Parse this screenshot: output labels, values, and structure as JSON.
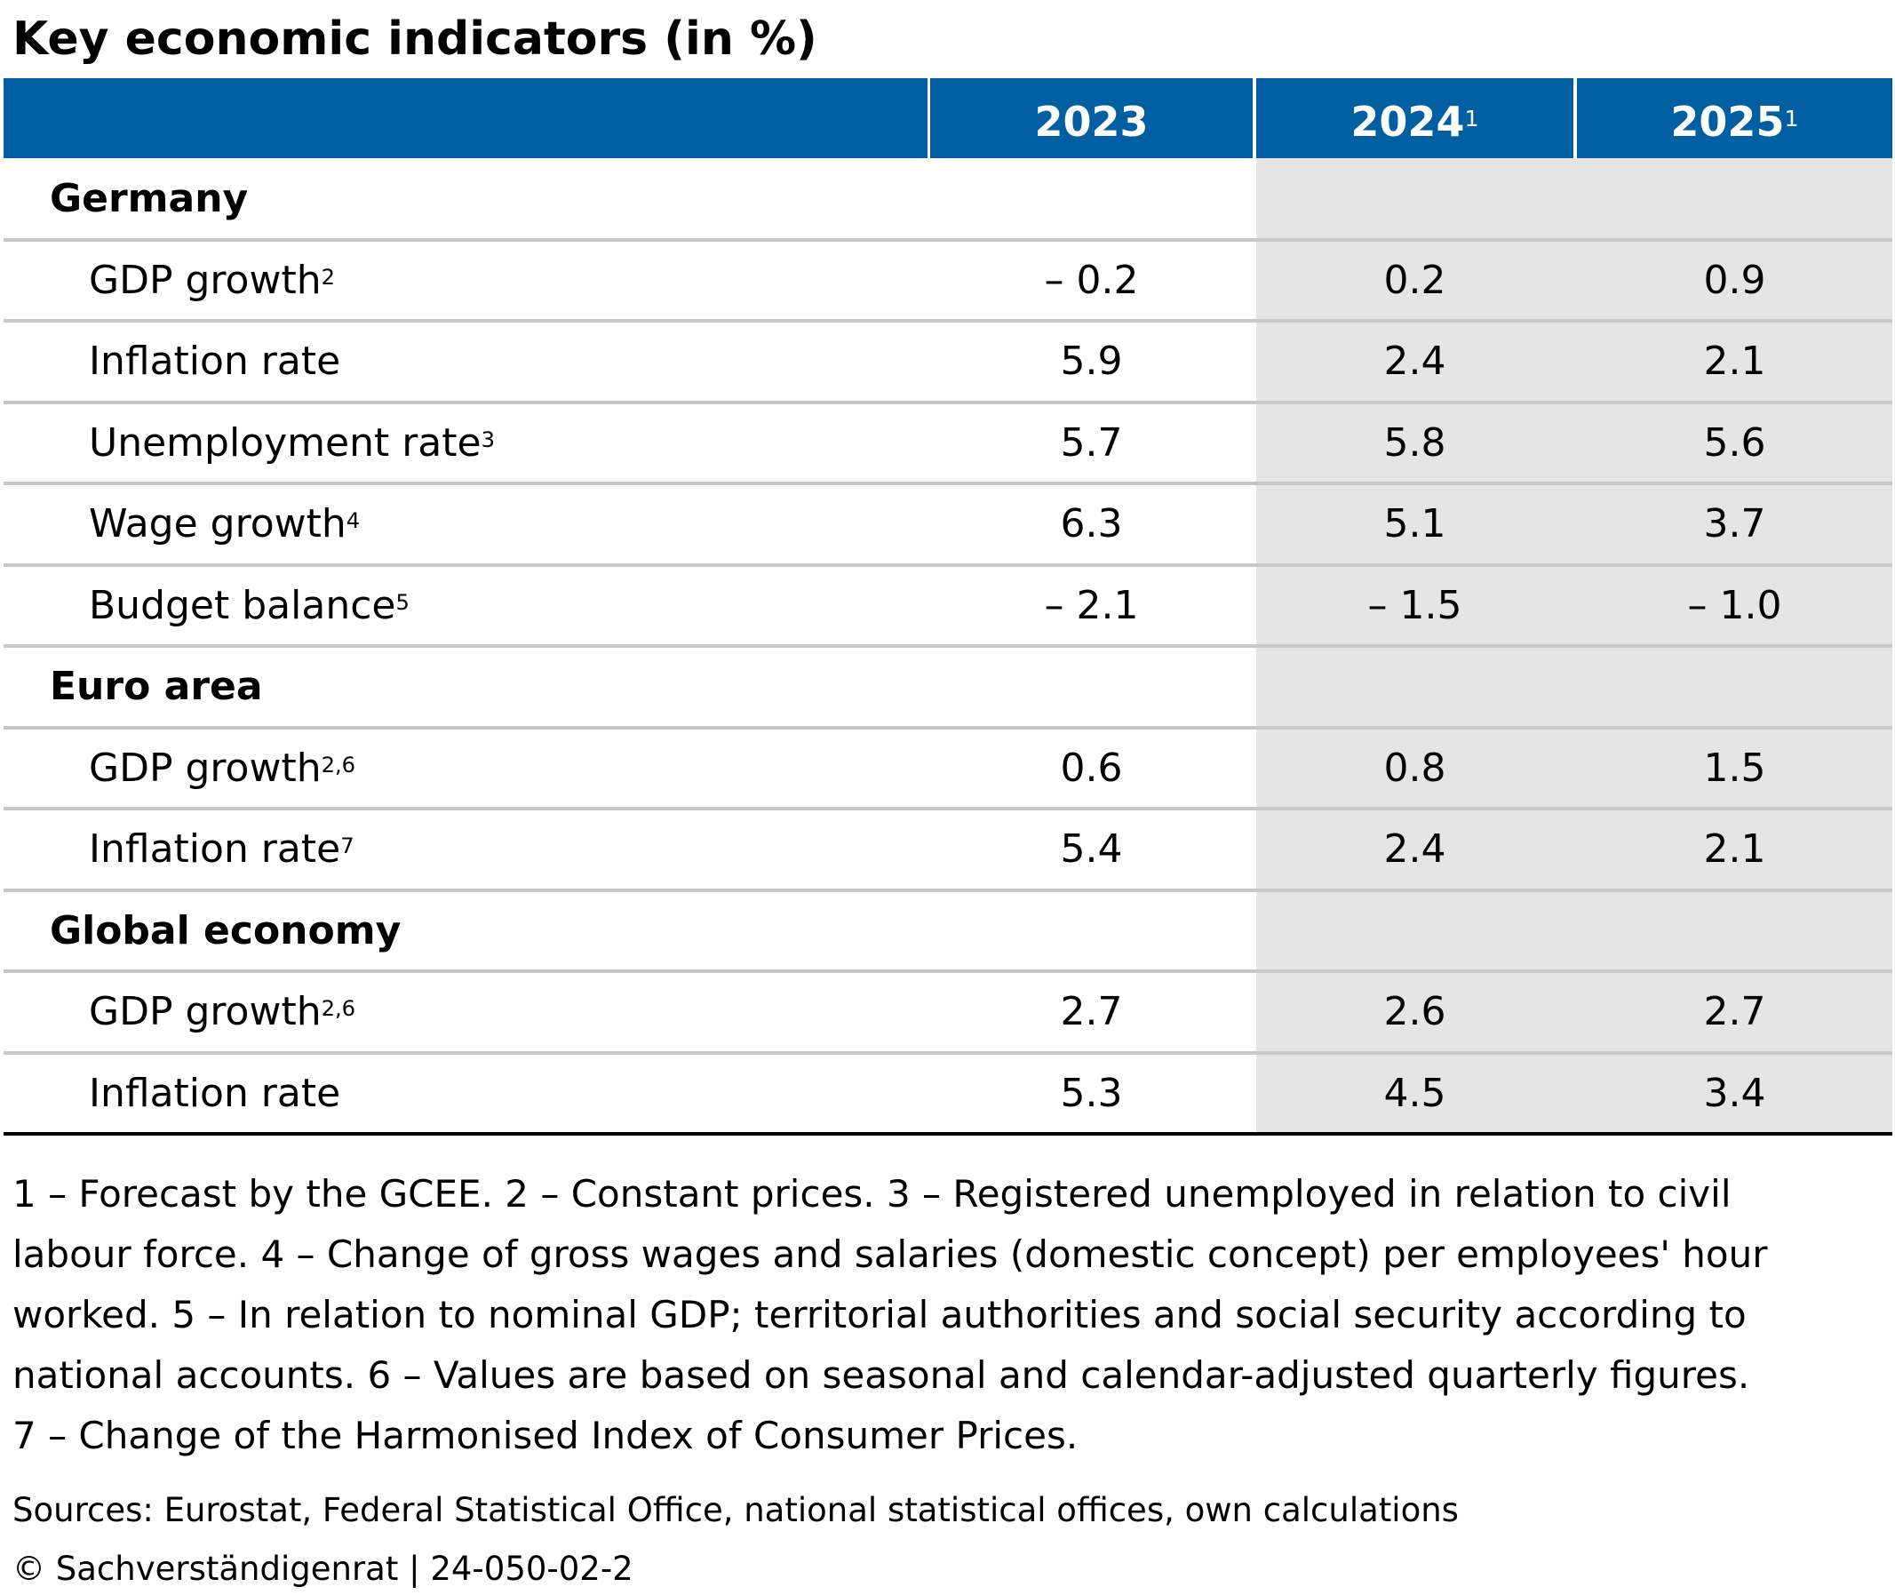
{
  "title": "Key economic indicators (in %)",
  "chart_data": {
    "type": "table",
    "title": "Key economic indicators (in %)",
    "columns": [
      {
        "label": "2023",
        "sup": ""
      },
      {
        "label": "2024",
        "sup": "1"
      },
      {
        "label": "2025",
        "sup": "1"
      }
    ],
    "forecast_shading_color": "#e5e5e5",
    "header_color": "#005ea2",
    "rows": [
      {
        "kind": "section",
        "label": "Germany",
        "sup": "",
        "values": [
          "",
          "",
          ""
        ]
      },
      {
        "kind": "indicator",
        "label": "GDP growth",
        "sup": "2",
        "values": [
          "– 0.2",
          "0.2",
          "0.9"
        ]
      },
      {
        "kind": "indicator",
        "label": "Inflation rate",
        "sup": "",
        "values": [
          "5.9",
          "2.4",
          "2.1"
        ]
      },
      {
        "kind": "indicator",
        "label": "Unemployment rate",
        "sup": "3",
        "values": [
          "5.7",
          "5.8",
          "5.6"
        ]
      },
      {
        "kind": "indicator",
        "label": "Wage growth",
        "sup": "4",
        "values": [
          "6.3",
          "5.1",
          "3.7"
        ]
      },
      {
        "kind": "indicator",
        "label": "Budget balance",
        "sup": "5",
        "values": [
          "– 2.1",
          "– 1.5",
          "– 1.0"
        ]
      },
      {
        "kind": "section",
        "label": "Euro area",
        "sup": "",
        "values": [
          "",
          "",
          ""
        ]
      },
      {
        "kind": "indicator",
        "label": "GDP growth",
        "sup": "2,6",
        "values": [
          "0.6",
          "0.8",
          "1.5"
        ]
      },
      {
        "kind": "indicator",
        "label": "Inflation rate",
        "sup": "7",
        "values": [
          "5.4",
          "2.4",
          "2.1"
        ]
      },
      {
        "kind": "section",
        "label": "Global economy",
        "sup": "",
        "values": [
          "",
          "",
          ""
        ]
      },
      {
        "kind": "indicator",
        "label": "GDP growth",
        "sup": "2,6",
        "values": [
          "2.7",
          "2.6",
          "2.7"
        ]
      },
      {
        "kind": "indicator",
        "label": "Inflation rate",
        "sup": "",
        "values": [
          "5.3",
          "4.5",
          "3.4"
        ]
      }
    ]
  },
  "footnotes": [
    "1 – Forecast by the GCEE.  2 – Constant prices.  3 – Registered unemployed in relation to civil",
    "labour force.  4 – Change of gross wages and salaries (domestic concept) per employees' hour",
    "worked.  5 – In relation to nominal GDP; territorial authorities and social security according to",
    "national accounts.  6 – Values are based on seasonal and calendar-adjusted quarterly figures.",
    "7 – Change of the Harmonised Index of Consumer Prices."
  ],
  "sources": "Sources: Eurostat, Federal Statistical Office, national statistical offices, own calculations",
  "copyright": "© Sachverständigenrat | 24-050-02-2"
}
